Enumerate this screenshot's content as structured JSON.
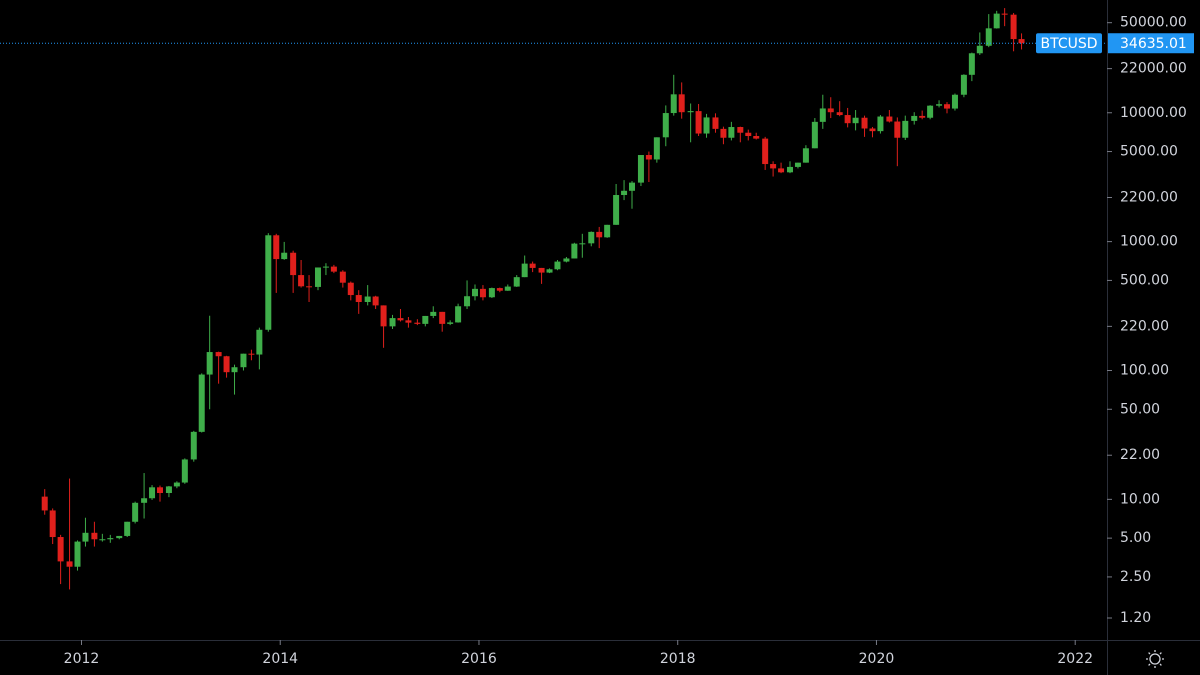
{
  "chart_data": {
    "type": "candlestick",
    "symbol": "BTCUSD",
    "log_y": true,
    "up_color": "#3fae4a",
    "down_color": "#e0201c",
    "xlim": [
      2011.18,
      2022.32
    ],
    "xticks": [
      2012,
      2014,
      2016,
      2018,
      2020,
      2022
    ],
    "ylim": [
      0.81,
      75000
    ],
    "yticks": [
      {
        "value": 1.2,
        "label": "1.20"
      },
      {
        "value": 2.5,
        "label": "2.50"
      },
      {
        "value": 5,
        "label": "5.00"
      },
      {
        "value": 10,
        "label": "10.00"
      },
      {
        "value": 22,
        "label": "22.00"
      },
      {
        "value": 50,
        "label": "50.00"
      },
      {
        "value": 100,
        "label": "100.00"
      },
      {
        "value": 220,
        "label": "220.00"
      },
      {
        "value": 500,
        "label": "500.00"
      },
      {
        "value": 1000,
        "label": "1000.00"
      },
      {
        "value": 2200,
        "label": "2200.00"
      },
      {
        "value": 5000,
        "label": "5000.00"
      },
      {
        "value": 10000,
        "label": "10000.00"
      },
      {
        "value": 22000,
        "label": "22000.00"
      },
      {
        "value": 50000,
        "label": "50000.00"
      }
    ],
    "x": [
      2011.63,
      2011.71,
      2011.79,
      2011.88,
      2011.96,
      2012.04,
      2012.13,
      2012.21,
      2012.29,
      2012.38,
      2012.46,
      2012.54,
      2012.63,
      2012.71,
      2012.79,
      2012.88,
      2012.96,
      2013.04,
      2013.13,
      2013.21,
      2013.29,
      2013.38,
      2013.46,
      2013.54,
      2013.63,
      2013.71,
      2013.79,
      2013.88,
      2013.96,
      2014.04,
      2014.13,
      2014.21,
      2014.29,
      2014.38,
      2014.46,
      2014.54,
      2014.63,
      2014.71,
      2014.79,
      2014.88,
      2014.96,
      2015.04,
      2015.13,
      2015.21,
      2015.29,
      2015.38,
      2015.46,
      2015.54,
      2015.63,
      2015.71,
      2015.79,
      2015.88,
      2015.96,
      2016.04,
      2016.13,
      2016.21,
      2016.29,
      2016.38,
      2016.46,
      2016.54,
      2016.63,
      2016.71,
      2016.79,
      2016.88,
      2016.96,
      2017.04,
      2017.13,
      2017.21,
      2017.29,
      2017.38,
      2017.46,
      2017.54,
      2017.63,
      2017.71,
      2017.79,
      2017.88,
      2017.96,
      2018.04,
      2018.13,
      2018.21,
      2018.29,
      2018.38,
      2018.46,
      2018.54,
      2018.63,
      2018.71,
      2018.79,
      2018.88,
      2018.96,
      2019.04,
      2019.13,
      2019.21,
      2019.29,
      2019.38,
      2019.46,
      2019.54,
      2019.63,
      2019.71,
      2019.79,
      2019.88,
      2019.96,
      2020.04,
      2020.13,
      2020.21,
      2020.29,
      2020.38,
      2020.46,
      2020.54,
      2020.63,
      2020.71,
      2020.79,
      2020.88,
      2020.96,
      2021.04,
      2021.13,
      2021.21,
      2021.29,
      2021.38,
      2021.46
    ],
    "open": [
      10.5,
      8.2,
      5.1,
      3.3,
      3.0,
      4.7,
      5.5,
      4.9,
      4.9,
      5.0,
      5.2,
      6.7,
      9.4,
      10.2,
      12.4,
      11.2,
      12.6,
      13.5,
      20.4,
      33.4,
      93,
      139,
      129,
      97,
      106,
      135,
      133,
      207,
      1120,
      732,
      820,
      550,
      450,
      445,
      630,
      640,
      585,
      480,
      385,
      340,
      375,
      320,
      220,
      255,
      245,
      235,
      230,
      265,
      285,
      230,
      236,
      315,
      377,
      430,
      370,
      436,
      416,
      448,
      530,
      675,
      625,
      575,
      610,
      700,
      740,
      965,
      970,
      1190,
      1080,
      1350,
      2300,
      2480,
      2870,
      4700,
      4340,
      6450,
      9950,
      13900,
      10100,
      10300,
      6900,
      9200,
      7500,
      6400,
      7750,
      7000,
      6600,
      6300,
      4000,
      3700,
      3450,
      3800,
      4100,
      5300,
      8500,
      10800,
      10100,
      9600,
      8300,
      9150,
      7550,
      7200,
      9350,
      8550,
      6400,
      8650,
      9450,
      9150,
      11350,
      11650,
      10780,
      13800,
      19700,
      28950,
      33100,
      45200,
      58800,
      57700,
      37300
    ],
    "high": [
      12,
      8.5,
      5.3,
      14.5,
      4.8,
      7.2,
      6.7,
      5.4,
      5.3,
      5.2,
      6.7,
      9.6,
      16,
      12.9,
      12.8,
      12.7,
      13.8,
      20.8,
      34,
      95,
      266,
      140,
      130,
      111,
      135,
      145,
      215,
      1163,
      1150,
      995,
      850,
      720,
      550,
      630,
      680,
      660,
      600,
      490,
      420,
      460,
      380,
      320,
      270,
      300,
      260,
      250,
      265,
      315,
      285,
      245,
      330,
      500,
      465,
      460,
      440,
      440,
      465,
      550,
      780,
      700,
      625,
      620,
      720,
      760,
      980,
      1150,
      1200,
      1300,
      1350,
      2800,
      3000,
      2950,
      4700,
      5000,
      6450,
      11400,
      19700,
      17200,
      11800,
      11700,
      9800,
      9900,
      7800,
      8500,
      7800,
      7400,
      7000,
      6500,
      4200,
      4100,
      4200,
      4100,
      5600,
      9100,
      13800,
      13200,
      12300,
      10900,
      10500,
      9500,
      7750,
      9600,
      10500,
      9200,
      9500,
      10100,
      10400,
      11450,
      12500,
      12100,
      14100,
      19900,
      29300,
      42000,
      58300,
      61800,
      64900,
      59500,
      41300
    ],
    "low": [
      7.6,
      4.5,
      2.2,
      2.0,
      2.8,
      4.3,
      4.3,
      4.7,
      4.6,
      4.9,
      5.1,
      6.5,
      7.1,
      9.9,
      9.6,
      10.4,
      12.2,
      13.2,
      19.6,
      33,
      50,
      79,
      88,
      65,
      100,
      120,
      102,
      200,
      400,
      722,
      400,
      440,
      340,
      420,
      550,
      570,
      440,
      350,
      275,
      320,
      300,
      150,
      210,
      240,
      215,
      225,
      220,
      255,
      200,
      225,
      235,
      300,
      350,
      350,
      365,
      405,
      415,
      445,
      530,
      580,
      470,
      570,
      600,
      690,
      740,
      750,
      920,
      890,
      1070,
      1350,
      2100,
      1800,
      2700,
      2900,
      4100,
      5500,
      9500,
      9000,
      5900,
      6600,
      6400,
      7000,
      5700,
      6100,
      5900,
      6100,
      6200,
      3600,
      3200,
      3400,
      3400,
      3700,
      4100,
      5300,
      7500,
      9100,
      9400,
      7700,
      7300,
      6500,
      6450,
      6900,
      8400,
      3850,
      6150,
      8100,
      8900,
      8900,
      11000,
      9900,
      10400,
      13200,
      17600,
      28100,
      32300,
      45000,
      47000,
      30000,
      31000
    ],
    "close": [
      8.2,
      5.1,
      3.3,
      3.0,
      4.7,
      5.5,
      4.9,
      4.9,
      5.0,
      5.2,
      6.7,
      9.4,
      10.2,
      12.4,
      11.2,
      12.6,
      13.5,
      20.4,
      33.4,
      93,
      139,
      129,
      97,
      106,
      135,
      133,
      207,
      1120,
      732,
      820,
      550,
      450,
      445,
      630,
      640,
      585,
      480,
      385,
      340,
      375,
      320,
      220,
      255,
      245,
      235,
      230,
      265,
      285,
      230,
      236,
      315,
      377,
      430,
      370,
      436,
      416,
      448,
      530,
      675,
      625,
      575,
      610,
      700,
      740,
      965,
      970,
      1190,
      1080,
      1350,
      2300,
      2480,
      2870,
      4700,
      4340,
      6450,
      9950,
      13900,
      10100,
      10300,
      6900,
      9200,
      7500,
      6400,
      7750,
      7000,
      6600,
      6300,
      4000,
      3700,
      3450,
      3800,
      4100,
      5300,
      8500,
      10800,
      10100,
      9600,
      8300,
      9150,
      7550,
      7200,
      9350,
      8550,
      6400,
      8650,
      9450,
      9150,
      11350,
      11650,
      10780,
      13800,
      19700,
      28950,
      33100,
      45200,
      58800,
      57700,
      37300,
      34635.01
    ]
  }
}
